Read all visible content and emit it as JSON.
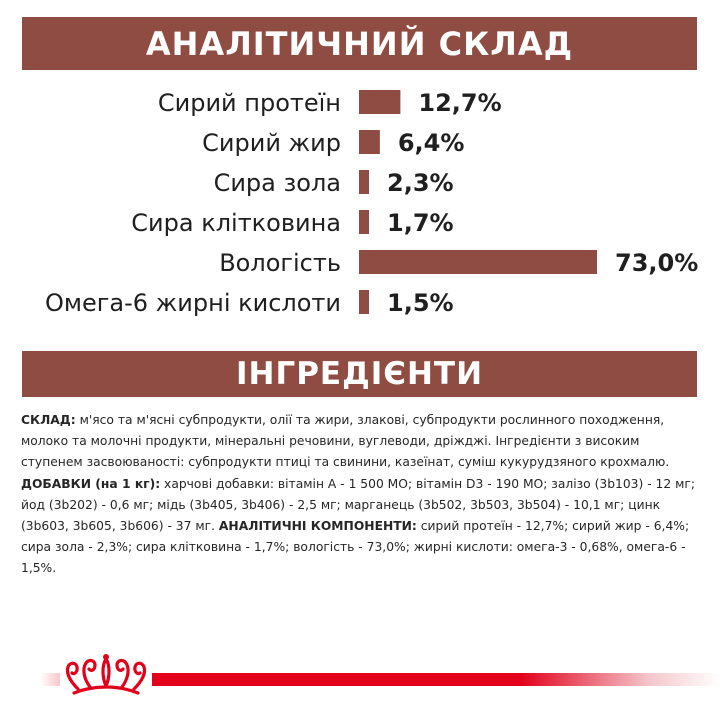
{
  "analysis_banner": {
    "title": "АНАЛІТИЧНИЙ СКЛАД"
  },
  "ingredients_banner": {
    "title": "ІНГРЕДІЄНТИ"
  },
  "chart_data": {
    "type": "bar",
    "orientation": "horizontal",
    "title": "АНАЛІТИЧНИЙ СКЛАД",
    "xlabel": "",
    "ylabel": "",
    "xlim": [
      0,
      73
    ],
    "grid": false,
    "categories": [
      "Сирий протеїн",
      "Сирий жир",
      "Сира зола",
      "Сира клітковина",
      "Вологість",
      "Омега-6 жирні кислоти"
    ],
    "values": [
      12.7,
      6.4,
      2.3,
      1.7,
      73.0,
      1.5
    ],
    "value_labels": [
      "12,7%",
      "6,4%",
      "2,3%",
      "1,7%",
      "73,0%",
      "1,5%"
    ],
    "bar_color": "#8f4c42"
  },
  "ingredients": {
    "composition_label": "СКЛАД:",
    "composition_text": " м'ясо та м'ясні субпродукти, олії та жири, злакові, субпродукти рослинного походження, молоко та молочні продукти, мінеральні речовини, вуглеводи, дріжджі. Інгредієнти з високим ступенем засвоюваності: субпродукти птиці та свинини, казеїнат, суміш кукурудзяного крохмалю.",
    "additives_label": "ДОБАВКИ (на 1 кг):",
    "additives_text": " харчові добавки: вітамін A - 1 500 МО; вітамін D3 - 190 МО; залізо (3b103) - 12 мг; йод (3b202) - 0,6 мг; мідь (3b405, 3b406) - 2,5 мг; марганець (3b502, 3b503, 3b504) - 10,1 мг; цинк (3b603, 3b605, 3b606) - 37 мг. ",
    "analytical_label": "АНАЛІТИЧНІ КОМПОНЕНТИ:",
    "analytical_text": " сирий протеїн - 12,7%; сирий жир - 6,4%; сира зола - 2,3%; сира клітковина - 1,7%; вологість - 73,0%; жирні кислоти: омега-3 - 0,68%, омега-6 - 1,5%."
  },
  "colors": {
    "brand_brown": "#8f4c42",
    "brand_red": "#e2001a",
    "text": "#1f1f1f"
  },
  "footer": {
    "logo_icon": "crown-icon"
  }
}
